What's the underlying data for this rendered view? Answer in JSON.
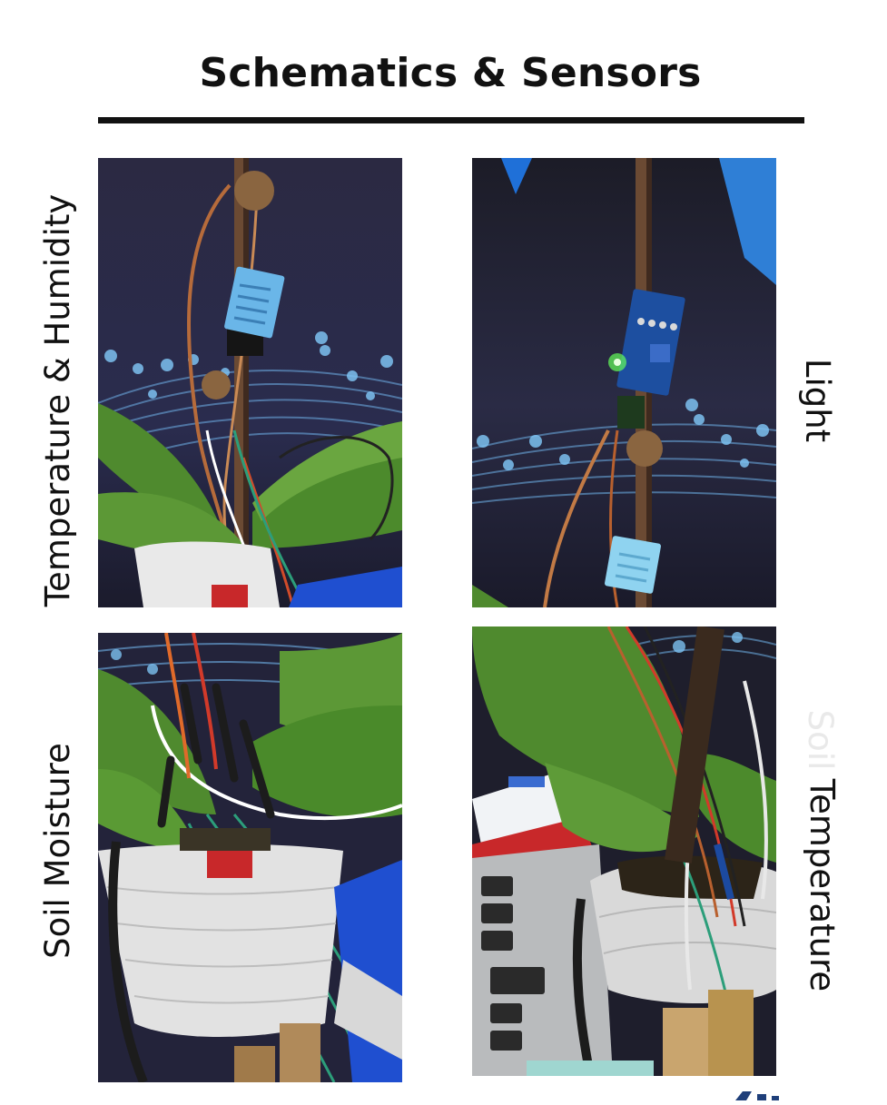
{
  "title": "Schematics & Sensors",
  "panels": [
    {
      "label": "Temperature & Humidity"
    },
    {
      "label": "Light"
    },
    {
      "label": "Soil Moisture"
    },
    {
      "label_faded": "Soil",
      "label": "Temperature"
    }
  ],
  "colors": {
    "text": "#111111",
    "rule": "#111111",
    "backdrop": "#24223a",
    "leaf": "#4f8a2e",
    "sensor_blue": "#6ab6e8",
    "pcb_blue": "#1d4fa0"
  }
}
